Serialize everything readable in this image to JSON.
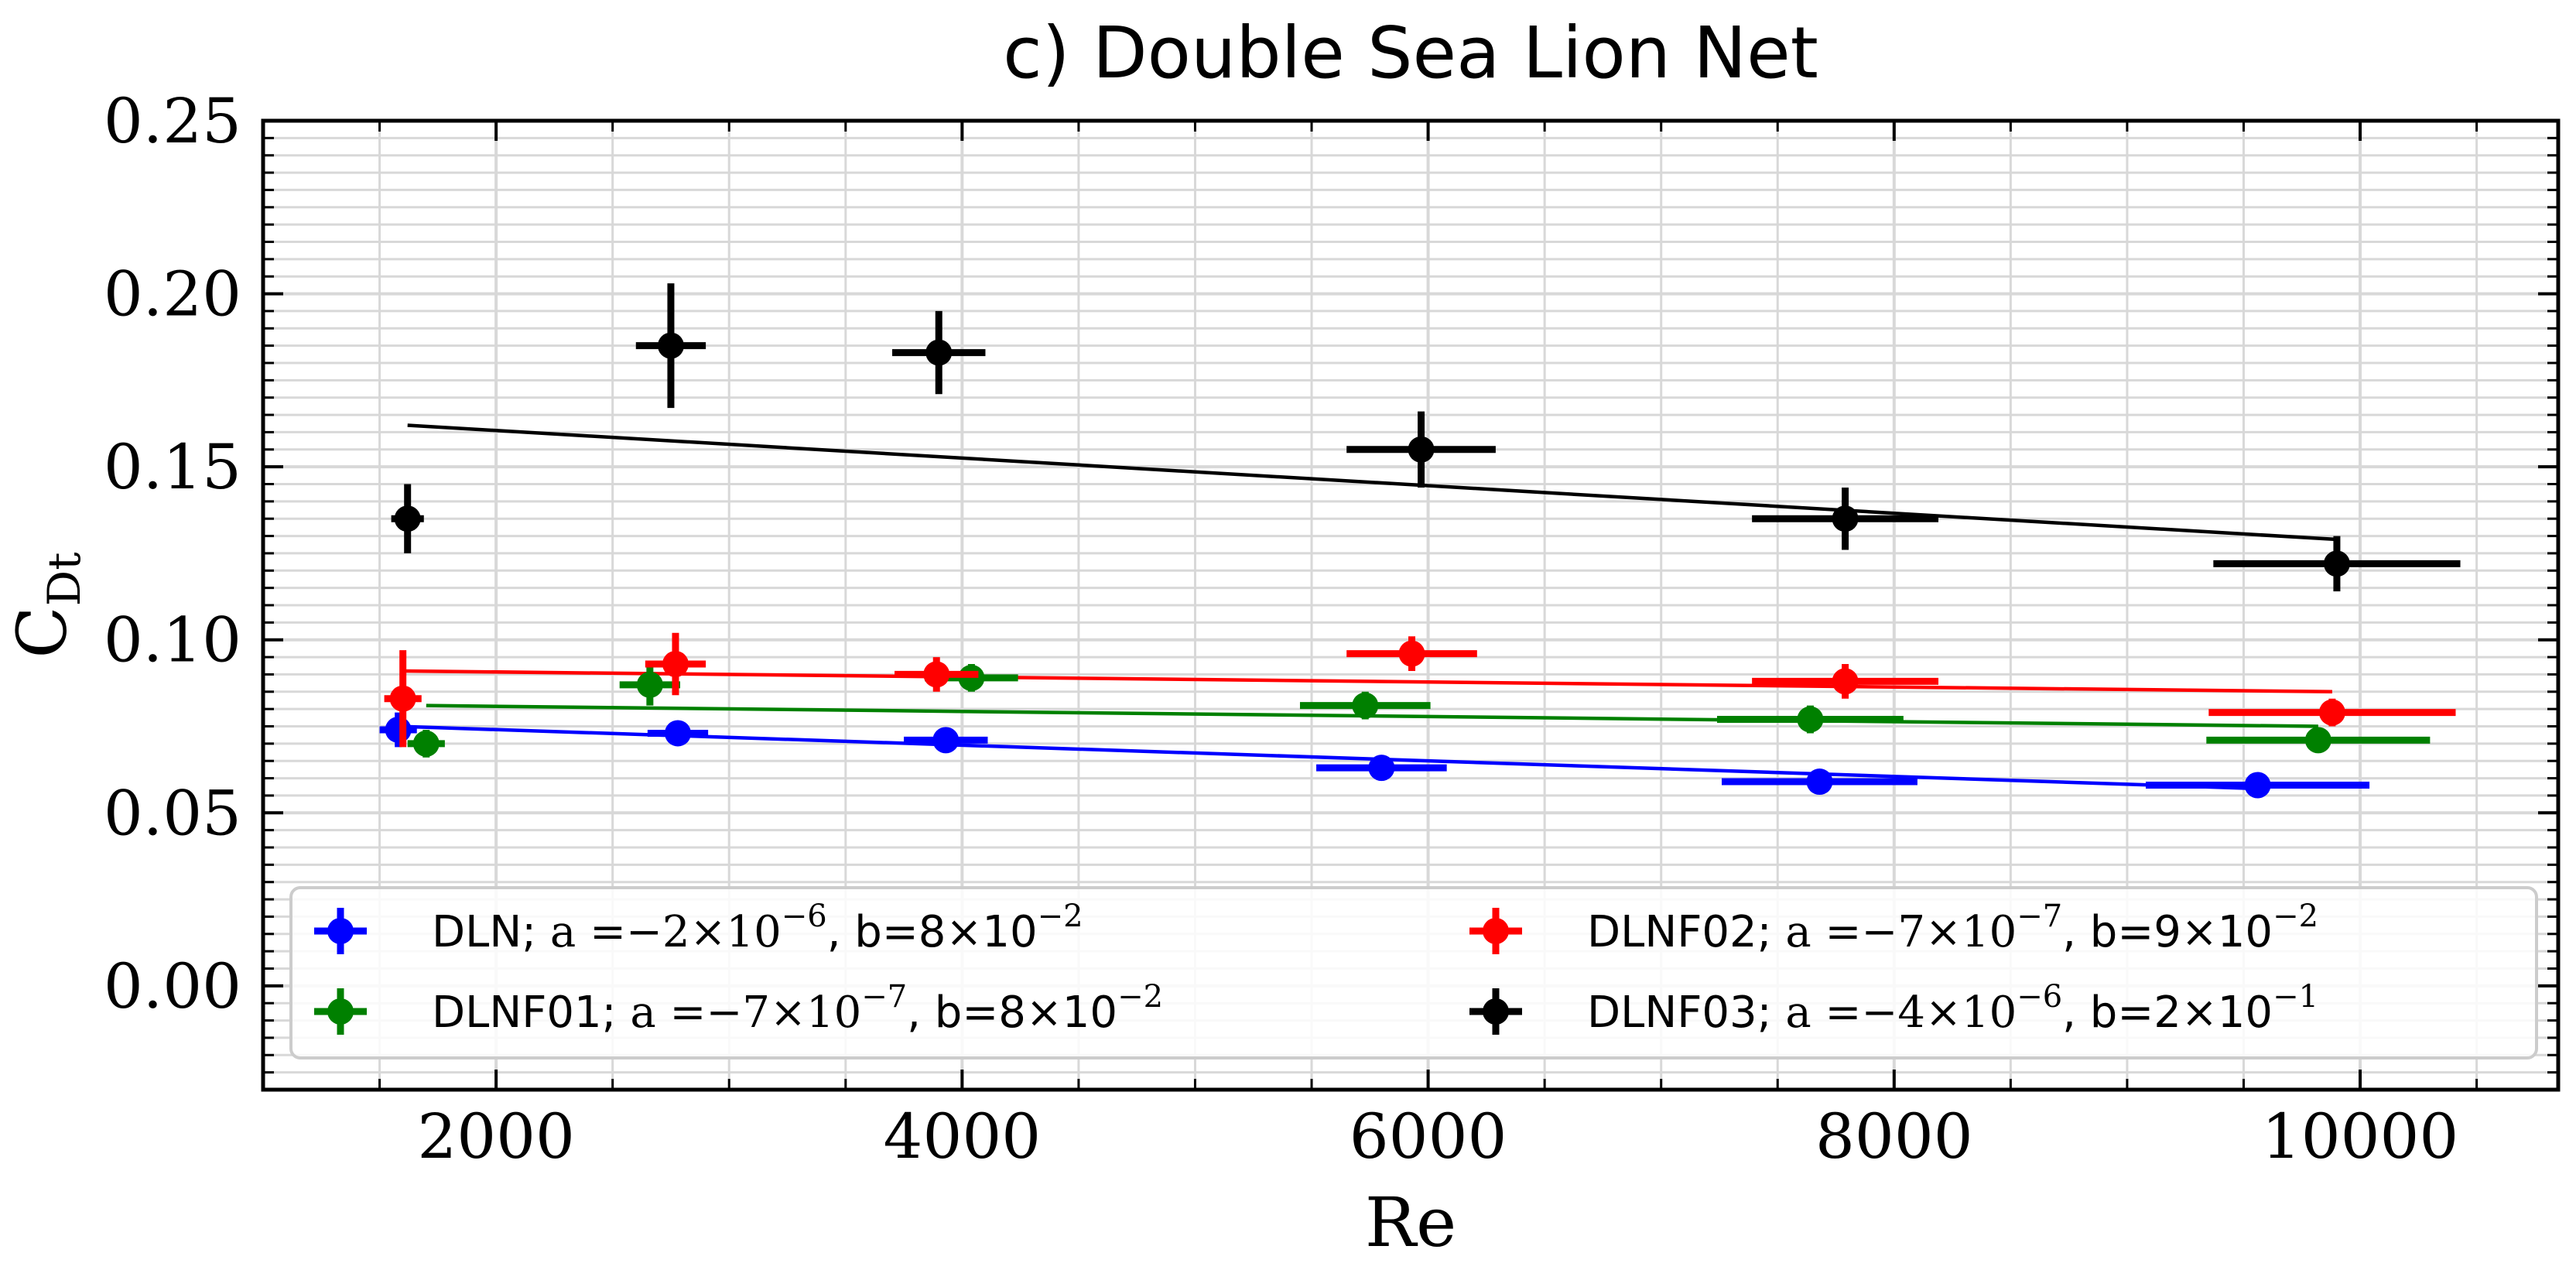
{
  "chart_data": {
    "type": "scatter",
    "title": "c) Double Sea Lion Net",
    "xlabel": "Re",
    "ylabel": "C",
    "ylabel_sub": "Dt",
    "xlim": [
      1000,
      10850
    ],
    "ylim": [
      -0.03,
      0.25
    ],
    "xticks": [
      2000,
      4000,
      6000,
      8000,
      10000
    ],
    "xtick_labels": [
      "2000",
      "4000",
      "6000",
      "8000",
      "10000"
    ],
    "yticks": [
      0.0,
      0.05,
      0.1,
      0.15,
      0.2,
      0.25
    ],
    "ytick_labels": [
      "0.00",
      "0.05",
      "0.10",
      "0.15",
      "0.20",
      "0.25"
    ],
    "grid": true,
    "legend_position": "lower center",
    "series": [
      {
        "name": "DLN",
        "legend": {
          "name": "DLN; ",
          "a_label": "a =",
          "a_value": "−2×10",
          "a_exp": "−6",
          "b_text": ", b=8×10",
          "b_exp": "−2"
        },
        "color": "#0000ff",
        "points": [
          {
            "x": 1580,
            "y": 0.074,
            "xerr": 80,
            "yerr": 0.005
          },
          {
            "x": 2780,
            "y": 0.073,
            "xerr": 130,
            "yerr": 0.003
          },
          {
            "x": 3930,
            "y": 0.071,
            "xerr": 180,
            "yerr": 0.003
          },
          {
            "x": 5800,
            "y": 0.063,
            "xerr": 280,
            "yerr": 0.003
          },
          {
            "x": 7680,
            "y": 0.059,
            "xerr": 420,
            "yerr": 0.003
          },
          {
            "x": 9560,
            "y": 0.058,
            "xerr": 480,
            "yerr": 0.003
          }
        ],
        "fit": {
          "x": [
            1580,
            9560
          ],
          "y": [
            0.075,
            0.057
          ]
        }
      },
      {
        "name": "DLNF01",
        "legend": {
          "name": "DLNF01; ",
          "a_label": "a =",
          "a_value": "−7×10",
          "a_exp": "−7",
          "b_text": ", b=8×10",
          "b_exp": "−2"
        },
        "color": "#008000",
        "points": [
          {
            "x": 1700,
            "y": 0.07,
            "xerr": 80,
            "yerr": 0.004
          },
          {
            "x": 2660,
            "y": 0.087,
            "xerr": 130,
            "yerr": 0.006
          },
          {
            "x": 4040,
            "y": 0.089,
            "xerr": 200,
            "yerr": 0.004
          },
          {
            "x": 5730,
            "y": 0.081,
            "xerr": 280,
            "yerr": 0.004
          },
          {
            "x": 7640,
            "y": 0.077,
            "xerr": 400,
            "yerr": 0.004
          },
          {
            "x": 9820,
            "y": 0.071,
            "xerr": 480,
            "yerr": 0.003
          }
        ],
        "fit": {
          "x": [
            1700,
            9820
          ],
          "y": [
            0.081,
            0.075
          ]
        }
      },
      {
        "name": "DLNF02",
        "legend": {
          "name": "DLNF02; ",
          "a_label": "a =",
          "a_value": "−7×10",
          "a_exp": "−7",
          "b_text": ", b=9×10",
          "b_exp": "−2"
        },
        "color": "#ff0000",
        "points": [
          {
            "x": 1600,
            "y": 0.083,
            "xerr": 80,
            "yerr": 0.014
          },
          {
            "x": 2770,
            "y": 0.093,
            "xerr": 130,
            "yerr": 0.009
          },
          {
            "x": 3890,
            "y": 0.09,
            "xerr": 180,
            "yerr": 0.005
          },
          {
            "x": 5930,
            "y": 0.096,
            "xerr": 280,
            "yerr": 0.005
          },
          {
            "x": 7790,
            "y": 0.088,
            "xerr": 400,
            "yerr": 0.005
          },
          {
            "x": 9880,
            "y": 0.079,
            "xerr": 530,
            "yerr": 0.004
          }
        ],
        "fit": {
          "x": [
            1600,
            9880
          ],
          "y": [
            0.091,
            0.085
          ]
        }
      },
      {
        "name": "DLNF03",
        "legend": {
          "name": "DLNF03; ",
          "a_label": "a =",
          "a_value": "−4×10",
          "a_exp": "−6",
          "b_text": ", b=2×10",
          "b_exp": "−1"
        },
        "color": "#000000",
        "points": [
          {
            "x": 1620,
            "y": 0.135,
            "xerr": 70,
            "yerr": 0.01
          },
          {
            "x": 2750,
            "y": 0.185,
            "xerr": 150,
            "yerr": 0.018
          },
          {
            "x": 3900,
            "y": 0.183,
            "xerr": 200,
            "yerr": 0.012
          },
          {
            "x": 5970,
            "y": 0.155,
            "xerr": 320,
            "yerr": 0.011
          },
          {
            "x": 7790,
            "y": 0.135,
            "xerr": 400,
            "yerr": 0.009
          },
          {
            "x": 9900,
            "y": 0.122,
            "xerr": 530,
            "yerr": 0.008
          }
        ],
        "fit": {
          "x": [
            1620,
            9900
          ],
          "y": [
            0.162,
            0.129
          ]
        }
      }
    ]
  }
}
